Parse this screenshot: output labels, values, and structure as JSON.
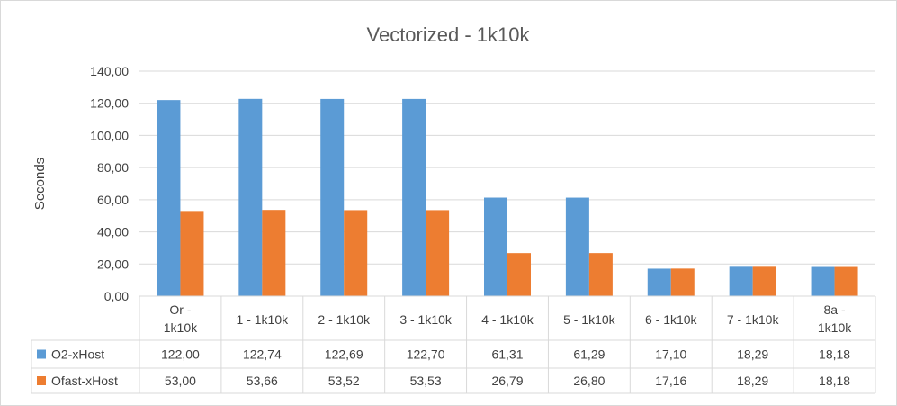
{
  "chart_data": {
    "type": "bar",
    "title": "Vectorized - 1k10k",
    "ylabel": "Seconds",
    "xlabel": "",
    "ylim": [
      0,
      140
    ],
    "yticks": [
      "0,00",
      "20,00",
      "40,00",
      "60,00",
      "80,00",
      "100,00",
      "120,00",
      "140,00"
    ],
    "grid": true,
    "legend": "data-table",
    "categories": [
      [
        "Or -",
        "1k10k"
      ],
      [
        "1 - 1k10k"
      ],
      [
        "2 - 1k10k"
      ],
      [
        "3 - 1k10k"
      ],
      [
        "4 - 1k10k"
      ],
      [
        "5 - 1k10k"
      ],
      [
        "6 - 1k10k"
      ],
      [
        "7 - 1k10k"
      ],
      [
        "8a -",
        "1k10k"
      ]
    ],
    "series": [
      {
        "name": "O2-xHost",
        "color": "#5b9bd5",
        "values": [
          122.0,
          122.74,
          122.69,
          122.7,
          61.31,
          61.29,
          17.1,
          18.29,
          18.18
        ],
        "labels": [
          "122,00",
          "122,74",
          "122,69",
          "122,70",
          "61,31",
          "61,29",
          "17,10",
          "18,29",
          "18,18"
        ]
      },
      {
        "name": "Ofast-xHost",
        "color": "#ed7d31",
        "values": [
          53.0,
          53.66,
          53.52,
          53.53,
          26.79,
          26.8,
          17.16,
          18.29,
          18.18
        ],
        "labels": [
          "53,00",
          "53,66",
          "53,52",
          "53,53",
          "26,79",
          "26,80",
          "17,16",
          "18,29",
          "18,18"
        ]
      }
    ]
  }
}
